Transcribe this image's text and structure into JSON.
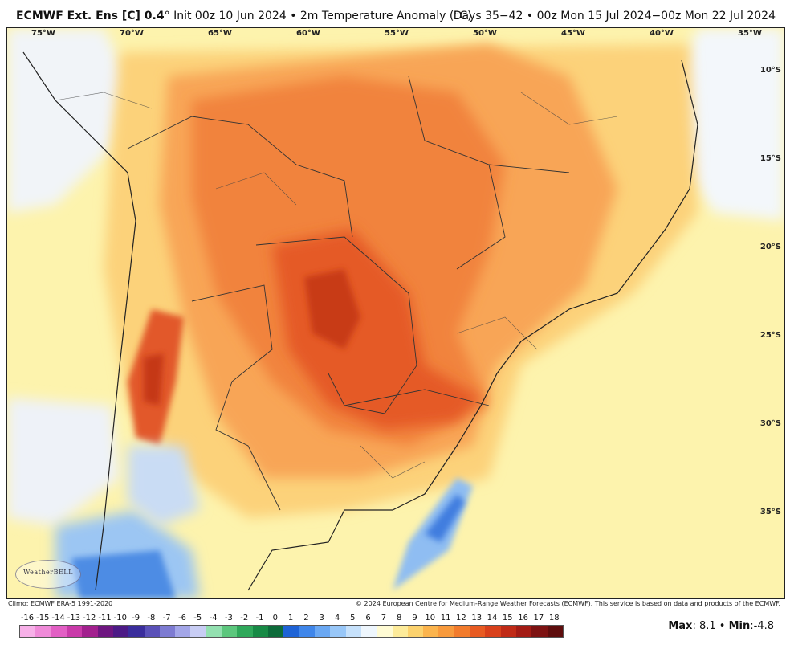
{
  "header": {
    "model": "ECMWF Ext. Ens [C] 0.4",
    "init": "° Init 00z 10 Jun 2024 • 2m Temperature Anomaly (°C)",
    "valid": "Days 35−42 • 00z Mon 15 Jul 2024−00z Mon 22 Jul 2024"
  },
  "map": {
    "lon_labels": [
      "75°W",
      "70°W",
      "65°W",
      "60°W",
      "55°W",
      "50°W",
      "45°W",
      "40°W",
      "35°W"
    ],
    "lat_labels": [
      "10°S",
      "15°S",
      "20°S",
      "25°S",
      "30°S",
      "35°S"
    ],
    "watermark": "WeatherBELL"
  },
  "footer": {
    "climo": "Climo: ECMWF ERA-5 1991-2020",
    "copyright": "© 2024 European Centre for Medium-Range Weather Forecasts (ECMWF). This service is based on data and products of the ECMWF."
  },
  "colorbar": {
    "ticks": [
      "-16",
      "-15",
      "-14",
      "-13",
      "-12",
      "-11",
      "-10",
      "-9",
      "-8",
      "-7",
      "-6",
      "-5",
      "-4",
      "-3",
      "-2",
      "-1",
      "0",
      "1",
      "2",
      "3",
      "4",
      "5",
      "6",
      "7",
      "8",
      "9",
      "10",
      "11",
      "12",
      "13",
      "14",
      "15",
      "16",
      "17",
      "18"
    ],
    "colors": [
      "#f7b0e8",
      "#ef8ad8",
      "#e25fc4",
      "#c93aa9",
      "#a2208e",
      "#6e1680",
      "#4c1a86",
      "#3a2d9c",
      "#5a51b8",
      "#7d7bd2",
      "#a3a6e8",
      "#c8cdf4",
      "#93e0b0",
      "#5cc77d",
      "#2fa85a",
      "#178a45",
      "#0d6b3a",
      "#1e63d6",
      "#3f86ea",
      "#6aa8f3",
      "#98c7f8",
      "#c6e1fb",
      "#eef6fd",
      "#fffbd4",
      "#fdeb9a",
      "#fcd26e",
      "#fbb44d",
      "#f89a3c",
      "#f27b2c",
      "#e85b22",
      "#d8401b",
      "#c02a16",
      "#a31b14",
      "#7d1212",
      "#5e0d0d"
    ]
  },
  "stats": {
    "max_label": "Max",
    "max": "8.1",
    "min_label": "Min",
    "min": "-4.8"
  }
}
